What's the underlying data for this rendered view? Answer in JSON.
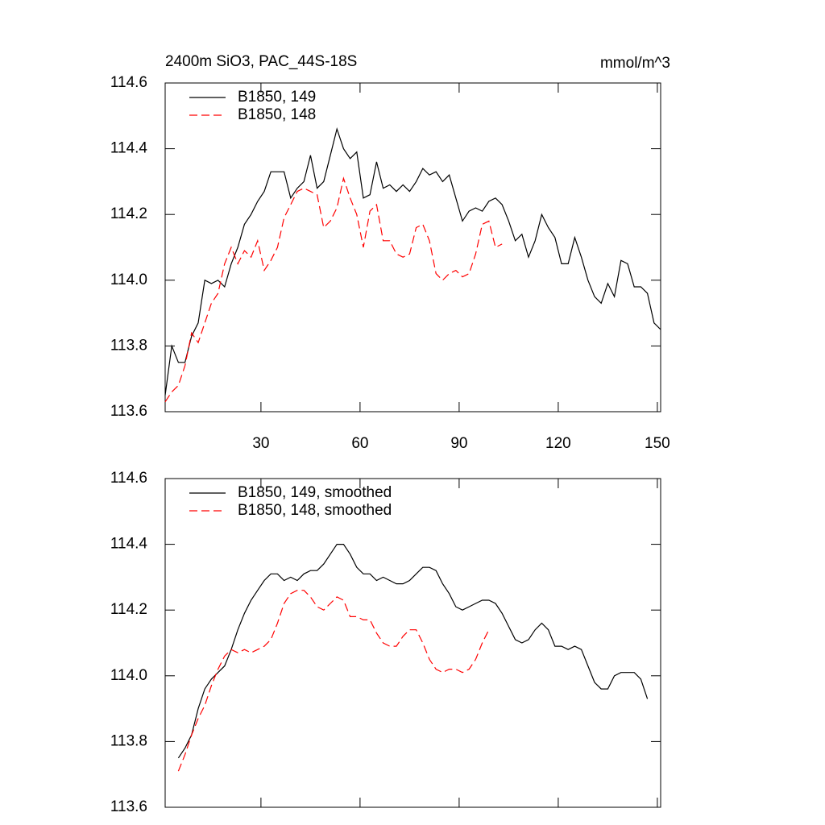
{
  "chart_data": [
    {
      "type": "line",
      "title": "2400m SiO3, PAC_44S-18S",
      "units": "mmol/m^3",
      "x": [
        1,
        3,
        5,
        7,
        9,
        11,
        13,
        15,
        17,
        19,
        21,
        23,
        25,
        27,
        29,
        31,
        33,
        35,
        37,
        39,
        41,
        43,
        45,
        47,
        49,
        51,
        53,
        55,
        57,
        59,
        61,
        63,
        65,
        67,
        69,
        71,
        73,
        75,
        77,
        79,
        81,
        83,
        85,
        87,
        89,
        91,
        93,
        95,
        97,
        99,
        101,
        103,
        105,
        107,
        109,
        111,
        113,
        115,
        117,
        119,
        121,
        123,
        125,
        127,
        129,
        131,
        133,
        135,
        137,
        139,
        141,
        143,
        145,
        147,
        149,
        151
      ],
      "series": [
        {
          "name": "B1850, 149",
          "color": "#000000",
          "dash": false,
          "values": [
            113.65,
            113.8,
            113.75,
            113.75,
            113.83,
            113.87,
            114.0,
            113.99,
            114.0,
            113.98,
            114.05,
            114.1,
            114.17,
            114.2,
            114.24,
            114.27,
            114.33,
            114.33,
            114.33,
            114.25,
            114.28,
            114.3,
            114.38,
            114.28,
            114.3,
            114.38,
            114.46,
            114.4,
            114.37,
            114.39,
            114.25,
            114.26,
            114.36,
            114.28,
            114.29,
            114.27,
            114.29,
            114.27,
            114.3,
            114.34,
            114.32,
            114.33,
            114.3,
            114.32,
            114.25,
            114.18,
            114.21,
            114.22,
            114.21,
            114.24,
            114.25,
            114.23,
            114.18,
            114.12,
            114.14,
            114.07,
            114.12,
            114.2,
            114.16,
            114.13,
            114.05,
            114.05,
            114.13,
            114.07,
            114.0,
            113.95,
            113.93,
            113.99,
            113.95,
            114.06,
            114.05,
            113.98,
            113.98,
            113.96,
            113.87,
            113.85
          ]
        },
        {
          "name": "B1850, 148",
          "color": "#ff0000",
          "dash": true,
          "values": [
            113.63,
            113.66,
            113.68,
            113.74,
            113.84,
            113.81,
            113.87,
            113.93,
            113.96,
            114.05,
            114.1,
            114.05,
            114.09,
            114.07,
            114.12,
            114.03,
            114.06,
            114.1,
            114.19,
            114.23,
            114.27,
            114.28,
            114.27,
            114.26,
            114.16,
            114.18,
            114.22,
            114.31,
            114.25,
            114.2,
            114.1,
            114.21,
            114.23,
            114.12,
            114.12,
            114.08,
            114.07,
            114.08,
            114.16,
            114.17,
            114.12,
            114.02,
            114.0,
            114.02,
            114.03,
            114.01,
            114.02,
            114.08,
            114.17,
            114.18,
            114.1,
            114.11,
            null,
            null,
            null,
            null,
            null,
            null,
            null,
            null,
            null,
            null,
            null,
            null,
            null,
            null,
            null,
            null,
            null,
            null,
            null,
            null,
            null,
            null,
            null,
            null
          ]
        }
      ],
      "xlim": [
        1,
        151
      ],
      "xticks": [
        30,
        60,
        90,
        120,
        150
      ],
      "xtick_labels": true,
      "ylim": [
        113.6,
        114.6
      ],
      "yticks": [
        113.6,
        113.8,
        {
          "value": 114,
          "label": "114.0"
        },
        114.2,
        114.4,
        114.6
      ],
      "legend": "upper left"
    },
    {
      "type": "line",
      "x": [
        1,
        3,
        5,
        7,
        9,
        11,
        13,
        15,
        17,
        19,
        21,
        23,
        25,
        27,
        29,
        31,
        33,
        35,
        37,
        39,
        41,
        43,
        45,
        47,
        49,
        51,
        53,
        55,
        57,
        59,
        61,
        63,
        65,
        67,
        69,
        71,
        73,
        75,
        77,
        79,
        81,
        83,
        85,
        87,
        89,
        91,
        93,
        95,
        97,
        99,
        101,
        103,
        105,
        107,
        109,
        111,
        113,
        115,
        117,
        119,
        121,
        123,
        125,
        127,
        129,
        131,
        133,
        135,
        137,
        139,
        141,
        143,
        145,
        147,
        149,
        151
      ],
      "series": [
        {
          "name": "B1850, 149, smoothed",
          "color": "#000000",
          "dash": false,
          "values": [
            null,
            null,
            113.75,
            113.78,
            113.82,
            113.9,
            113.96,
            113.99,
            114.01,
            114.03,
            114.08,
            114.14,
            114.19,
            114.23,
            114.26,
            114.29,
            114.31,
            114.31,
            114.29,
            114.3,
            114.29,
            114.31,
            114.32,
            114.32,
            114.34,
            114.37,
            114.4,
            114.4,
            114.37,
            114.33,
            114.31,
            114.31,
            114.29,
            114.3,
            114.29,
            114.28,
            114.28,
            114.29,
            114.31,
            114.33,
            114.33,
            114.32,
            114.28,
            114.25,
            114.21,
            114.2,
            114.21,
            114.22,
            114.23,
            114.23,
            114.22,
            114.19,
            114.15,
            114.11,
            114.1,
            114.11,
            114.14,
            114.16,
            114.14,
            114.09,
            114.09,
            114.08,
            114.09,
            114.08,
            114.03,
            113.98,
            113.96,
            113.96,
            114.0,
            114.01,
            114.01,
            114.01,
            113.99,
            113.93,
            null,
            null
          ]
        },
        {
          "name": "B1850, 148, smoothed",
          "color": "#ff0000",
          "dash": true,
          "values": [
            null,
            null,
            113.71,
            113.76,
            113.82,
            113.87,
            113.91,
            113.97,
            114.02,
            114.06,
            114.08,
            114.07,
            114.08,
            114.07,
            114.08,
            114.09,
            114.11,
            114.16,
            114.22,
            114.25,
            114.26,
            114.26,
            114.24,
            114.21,
            114.2,
            114.22,
            114.24,
            114.23,
            114.18,
            114.18,
            114.17,
            114.17,
            114.13,
            114.1,
            114.09,
            114.09,
            114.12,
            114.14,
            114.14,
            114.1,
            114.05,
            114.02,
            114.01,
            114.02,
            114.02,
            114.01,
            114.02,
            114.05,
            114.1,
            114.14,
            null,
            null,
            null,
            null,
            null,
            null,
            null,
            null,
            null,
            null,
            null,
            null,
            null,
            null,
            null,
            null,
            null,
            null,
            null,
            null,
            null,
            null,
            null,
            null,
            null,
            null
          ]
        }
      ],
      "xlim": [
        1,
        151
      ],
      "xticks": [
        30,
        60,
        90,
        120,
        150
      ],
      "xtick_labels": false,
      "ylim": [
        113.6,
        114.6
      ],
      "yticks": [
        113.6,
        113.8,
        {
          "value": 114,
          "label": "114.0"
        },
        114.2,
        114.4,
        114.6
      ],
      "legend": "upper left"
    }
  ]
}
